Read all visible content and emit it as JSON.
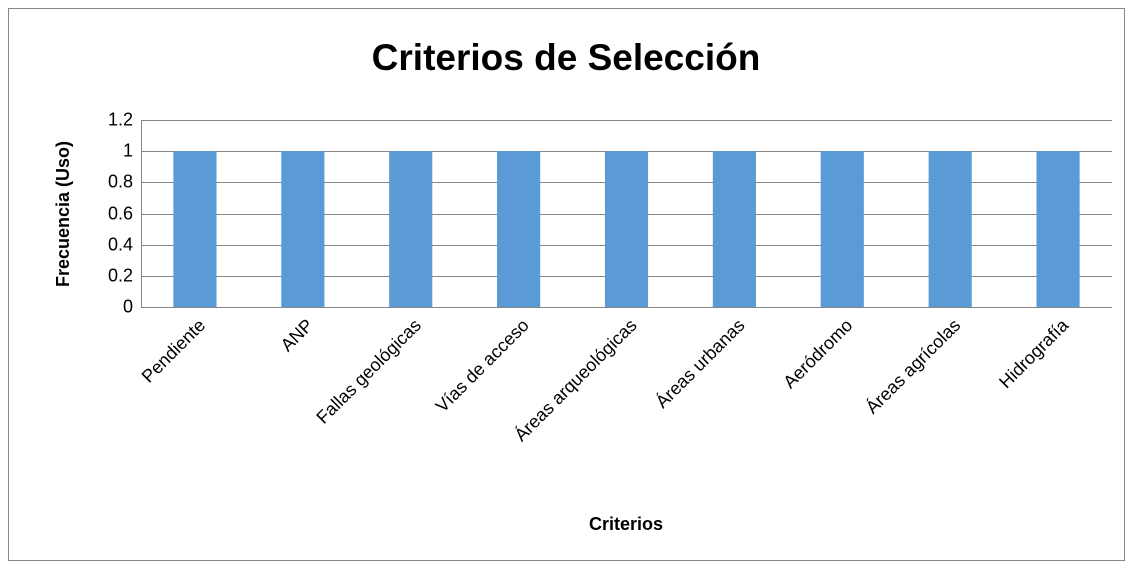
{
  "chart_data": {
    "type": "bar",
    "title": "Criterios de Selección",
    "x_label": "Criterios",
    "y_label": "Frecuencia (Uso)",
    "categories": [
      "Pendiente",
      "ANP",
      "Fallas geológicas",
      "Vías de acceso",
      "Áreas arqueológicas",
      "Áreas urbanas",
      "Aeródromo",
      "Áreas agrícolas",
      "Hidrografía"
    ],
    "values": [
      1,
      1,
      1,
      1,
      1,
      1,
      1,
      1,
      1
    ],
    "color": "#5b9bd5",
    "ylim": [
      0,
      1.2
    ],
    "yticks": [
      0,
      0.2,
      0.4,
      0.6,
      0.8,
      1,
      1.2
    ],
    "grid": true
  }
}
